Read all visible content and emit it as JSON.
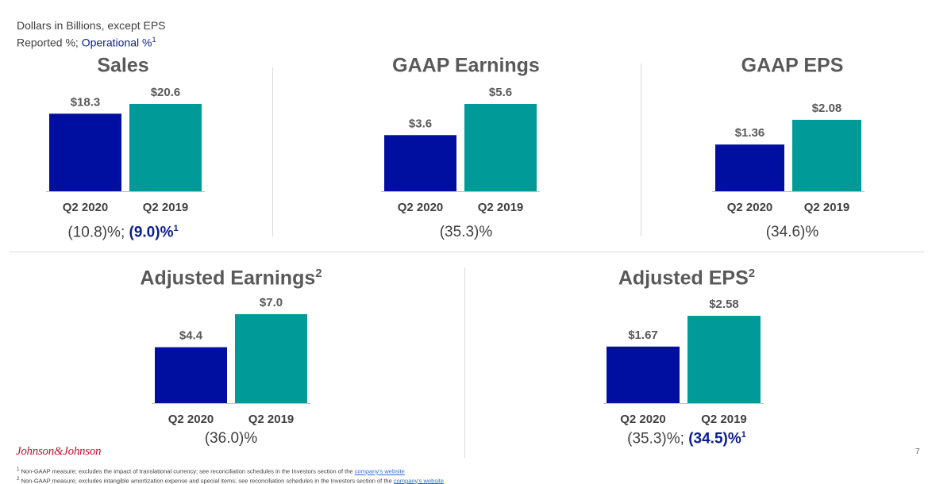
{
  "header": {
    "line1": "Dollars in Billions, except EPS",
    "reported_label": "Reported %; ",
    "operational_label": "Operational %",
    "operational_sup": "1"
  },
  "colors": {
    "q2_2020": "#000f9f",
    "q2_2019": "#009b98",
    "operational_text": "#0b1d8f"
  },
  "chart_data": [
    {
      "type": "bar",
      "title": "Sales",
      "title_sup": "",
      "categories": [
        "Q2 2020",
        "Q2 2019"
      ],
      "values": [
        18.3,
        20.6
      ],
      "value_labels": [
        "$18.3",
        "$20.6"
      ],
      "growth": {
        "reported": "(10.8)%",
        "separator": "; ",
        "operational": "(9.0)%",
        "operational_sup": "1"
      }
    },
    {
      "type": "bar",
      "title": "GAAP Earnings",
      "title_sup": "",
      "categories": [
        "Q2 2020",
        "Q2 2019"
      ],
      "values": [
        3.6,
        5.6
      ],
      "value_labels": [
        "$3.6",
        "$5.6"
      ],
      "growth": {
        "reported": "(35.3)%",
        "separator": "",
        "operational": "",
        "operational_sup": ""
      }
    },
    {
      "type": "bar",
      "title": "GAAP EPS",
      "title_sup": "",
      "categories": [
        "Q2 2020",
        "Q2 2019"
      ],
      "values": [
        1.36,
        2.08
      ],
      "value_labels": [
        "$1.36",
        "$2.08"
      ],
      "growth": {
        "reported": "(34.6)%",
        "separator": "",
        "operational": "",
        "operational_sup": ""
      }
    },
    {
      "type": "bar",
      "title": "Adjusted Earnings",
      "title_sup": "2",
      "categories": [
        "Q2 2020",
        "Q2 2019"
      ],
      "values": [
        4.4,
        7.0
      ],
      "value_labels": [
        "$4.4",
        "$7.0"
      ],
      "growth": {
        "reported": "(36.0)%",
        "separator": "",
        "operational": "",
        "operational_sup": ""
      }
    },
    {
      "type": "bar",
      "title": "Adjusted EPS",
      "title_sup": "2",
      "categories": [
        "Q2 2020",
        "Q2 2019"
      ],
      "values": [
        1.67,
        2.58
      ],
      "value_labels": [
        "$1.67",
        "$2.58"
      ],
      "growth": {
        "reported": "(35.3)%",
        "separator": "; ",
        "operational": "(34.5)%",
        "operational_sup": "1"
      }
    }
  ],
  "logo_text": "Johnson&Johnson",
  "page_number": "7",
  "footnotes": [
    {
      "marker": "1",
      "text": " Non-GAAP measure; excludes the impact of translational currency; see reconciliation schedules in the Investors section of the ",
      "link": "company's website"
    },
    {
      "marker": "2",
      "text": " Non-GAAP measure; excludes intangible amortization expense and special items; see reconciliation schedules in the Investors section of the ",
      "link": "company's website"
    }
  ]
}
